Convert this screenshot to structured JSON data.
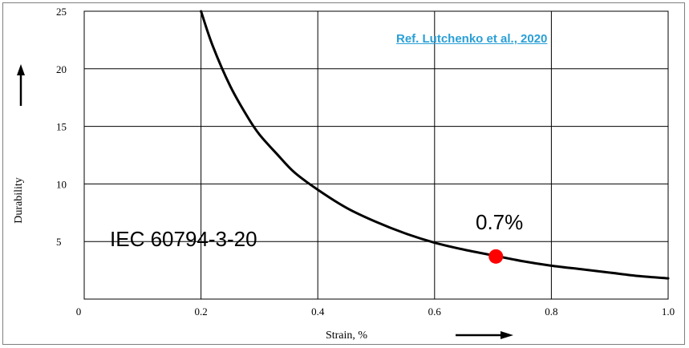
{
  "chart_data": {
    "type": "line",
    "xlabel": "Strain, %",
    "ylabel": "Durability",
    "xlim": [
      0,
      1.0
    ],
    "ylim": [
      0,
      25
    ],
    "x_ticks": [
      "0",
      "0.2",
      "0.4",
      "0.6",
      "0.8",
      "1.0"
    ],
    "y_ticks": [
      "5",
      "10",
      "15",
      "20",
      "25"
    ],
    "grid": true,
    "series": [
      {
        "x": [
          0.2,
          0.22,
          0.25,
          0.28,
          0.3,
          0.33,
          0.36,
          0.4,
          0.45,
          0.5,
          0.55,
          0.6,
          0.65,
          0.7,
          0.75,
          0.8,
          0.85,
          0.9,
          0.95,
          1.0
        ],
        "y": [
          25.0,
          22.0,
          18.5,
          15.8,
          14.3,
          12.6,
          11.0,
          9.5,
          7.9,
          6.7,
          5.7,
          4.9,
          4.3,
          3.8,
          3.3,
          2.9,
          2.6,
          2.3,
          2.0,
          1.8
        ]
      }
    ],
    "highlight_point": {
      "x": 0.705,
      "y": 3.7,
      "label": "0.7%",
      "color": "#ff0000"
    },
    "annotations": {
      "standard": "IEC 60794-3-20"
    }
  },
  "reference": {
    "label": "Ref. Lutchenko et al., 2020"
  },
  "colors": {
    "link": "#2a9fd6",
    "grid": "#000000",
    "curve": "#000000",
    "marker": "#ff0000"
  }
}
